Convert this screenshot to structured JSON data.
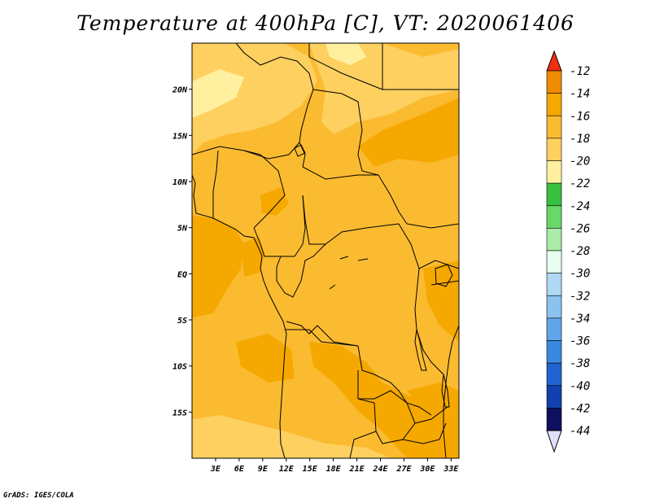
{
  "title": "Temperature at 400hPa [C], VT: 2020061406",
  "credit": "GrADS: IGES/COLA",
  "map": {
    "lat_range": [
      -20,
      25
    ],
    "lon_range": [
      0,
      34
    ],
    "lat_ticks": [
      {
        "value": 20,
        "label": "20N"
      },
      {
        "value": 15,
        "label": "15N"
      },
      {
        "value": 10,
        "label": "10N"
      },
      {
        "value": 5,
        "label": "5N"
      },
      {
        "value": 0,
        "label": "EQ"
      },
      {
        "value": -5,
        "label": "5S"
      },
      {
        "value": -10,
        "label": "10S"
      },
      {
        "value": -15,
        "label": "15S"
      }
    ],
    "lon_ticks": [
      {
        "value": 3,
        "label": "3E"
      },
      {
        "value": 6,
        "label": "6E"
      },
      {
        "value": 9,
        "label": "9E"
      },
      {
        "value": 12,
        "label": "12E"
      },
      {
        "value": 15,
        "label": "15E"
      },
      {
        "value": 18,
        "label": "18E"
      },
      {
        "value": 21,
        "label": "21E"
      },
      {
        "value": 24,
        "label": "24E"
      },
      {
        "value": 27,
        "label": "27E"
      },
      {
        "value": 30,
        "label": "30E"
      },
      {
        "value": 33,
        "label": "33E"
      }
    ]
  },
  "colorbar": {
    "labels": [
      "-12",
      "-14",
      "-16",
      "-18",
      "-20",
      "-22",
      "-24",
      "-26",
      "-28",
      "-30",
      "-32",
      "-34",
      "-36",
      "-38",
      "-40",
      "-42",
      "-44"
    ],
    "colors": [
      "#f06010",
      "#f08c00",
      "#f5a800",
      "#fbbb30",
      "#fdd060",
      "#fff0a0",
      "#38c040",
      "#68d868",
      "#a8eca8",
      "#e8fff0",
      "#b0d8f4",
      "#8cc2ee",
      "#5fa5e8",
      "#3b88e0",
      "#1f64d0",
      "#1240b0",
      "#101060"
    ],
    "top_arrow_color": "#f03010",
    "bottom_arrow_color": "#e0e0f8"
  },
  "fill_colors": {
    "c16": "#fbbb30",
    "c14": "#f5a800",
    "c18": "#fdd060",
    "c20": "#fff0a0"
  }
}
